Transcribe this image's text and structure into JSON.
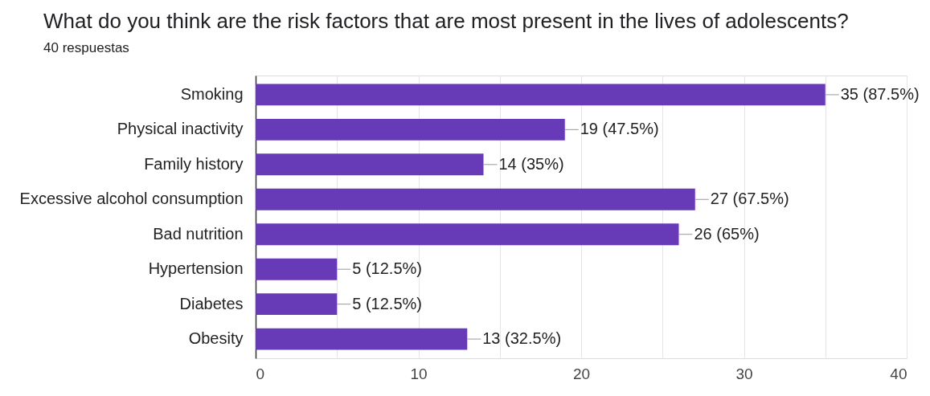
{
  "chart_data": {
    "type": "bar",
    "orientation": "horizontal",
    "title": "What do you think are the risk factors that are most present in the lives of adolescents?",
    "subtitle": "40 respuestas",
    "categories": [
      "Smoking",
      "Physical inactivity",
      "Family history",
      "Excessive alcohol consumption",
      "Bad nutrition",
      "Hypertension",
      "Diabetes",
      "Obesity"
    ],
    "values": [
      35,
      19,
      14,
      27,
      26,
      5,
      5,
      13
    ],
    "value_labels": [
      "35 (87.5%)",
      "19 (47.5%)",
      "14 (35%)",
      "27 (67.5%)",
      "26 (65%)",
      "5 (12.5%)",
      "5 (12.5%)",
      "13 (32.5%)"
    ],
    "color": "#673ab7",
    "xlim": [
      0,
      40
    ],
    "xticks": [
      0,
      {
        "value": 5,
        "label": null
      },
      10,
      {
        "value": 15,
        "label": null
      },
      20,
      {
        "value": 25,
        "label": null
      },
      30,
      {
        "value": 35,
        "label": null
      },
      40
    ],
    "grid": "x"
  }
}
